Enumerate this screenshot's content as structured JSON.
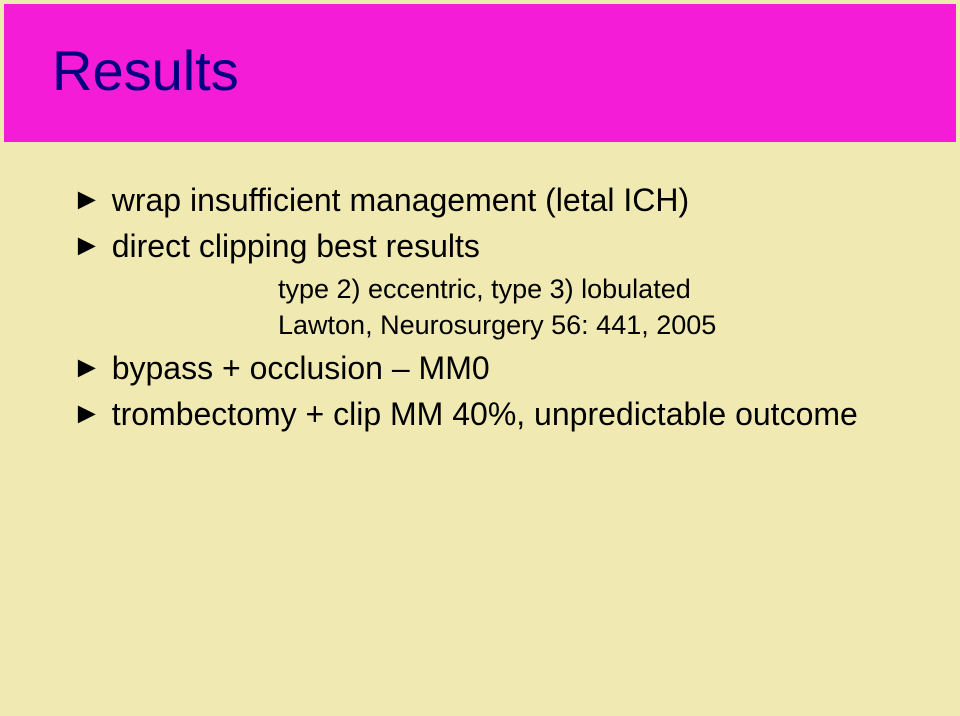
{
  "slide": {
    "title": "Results",
    "background_color": "#f0eab2",
    "title_box_color": "#f41cd6",
    "title_color": "#000080",
    "bullet_glyph": "►",
    "bullets": [
      {
        "text": "wrap insufficient management (letal ICH)"
      },
      {
        "text": "direct clipping best results"
      }
    ],
    "sub_lines": [
      {
        "text": "type 2) eccentric, type 3) lobulated"
      },
      {
        "text": "Lawton, Neurosurgery 56: 441, 2005"
      }
    ],
    "bullets_after": [
      {
        "text": "bypass + occlusion – MM0"
      },
      {
        "text": "trombectomy + clip MM 40%, unpredictable outcome"
      }
    ]
  }
}
